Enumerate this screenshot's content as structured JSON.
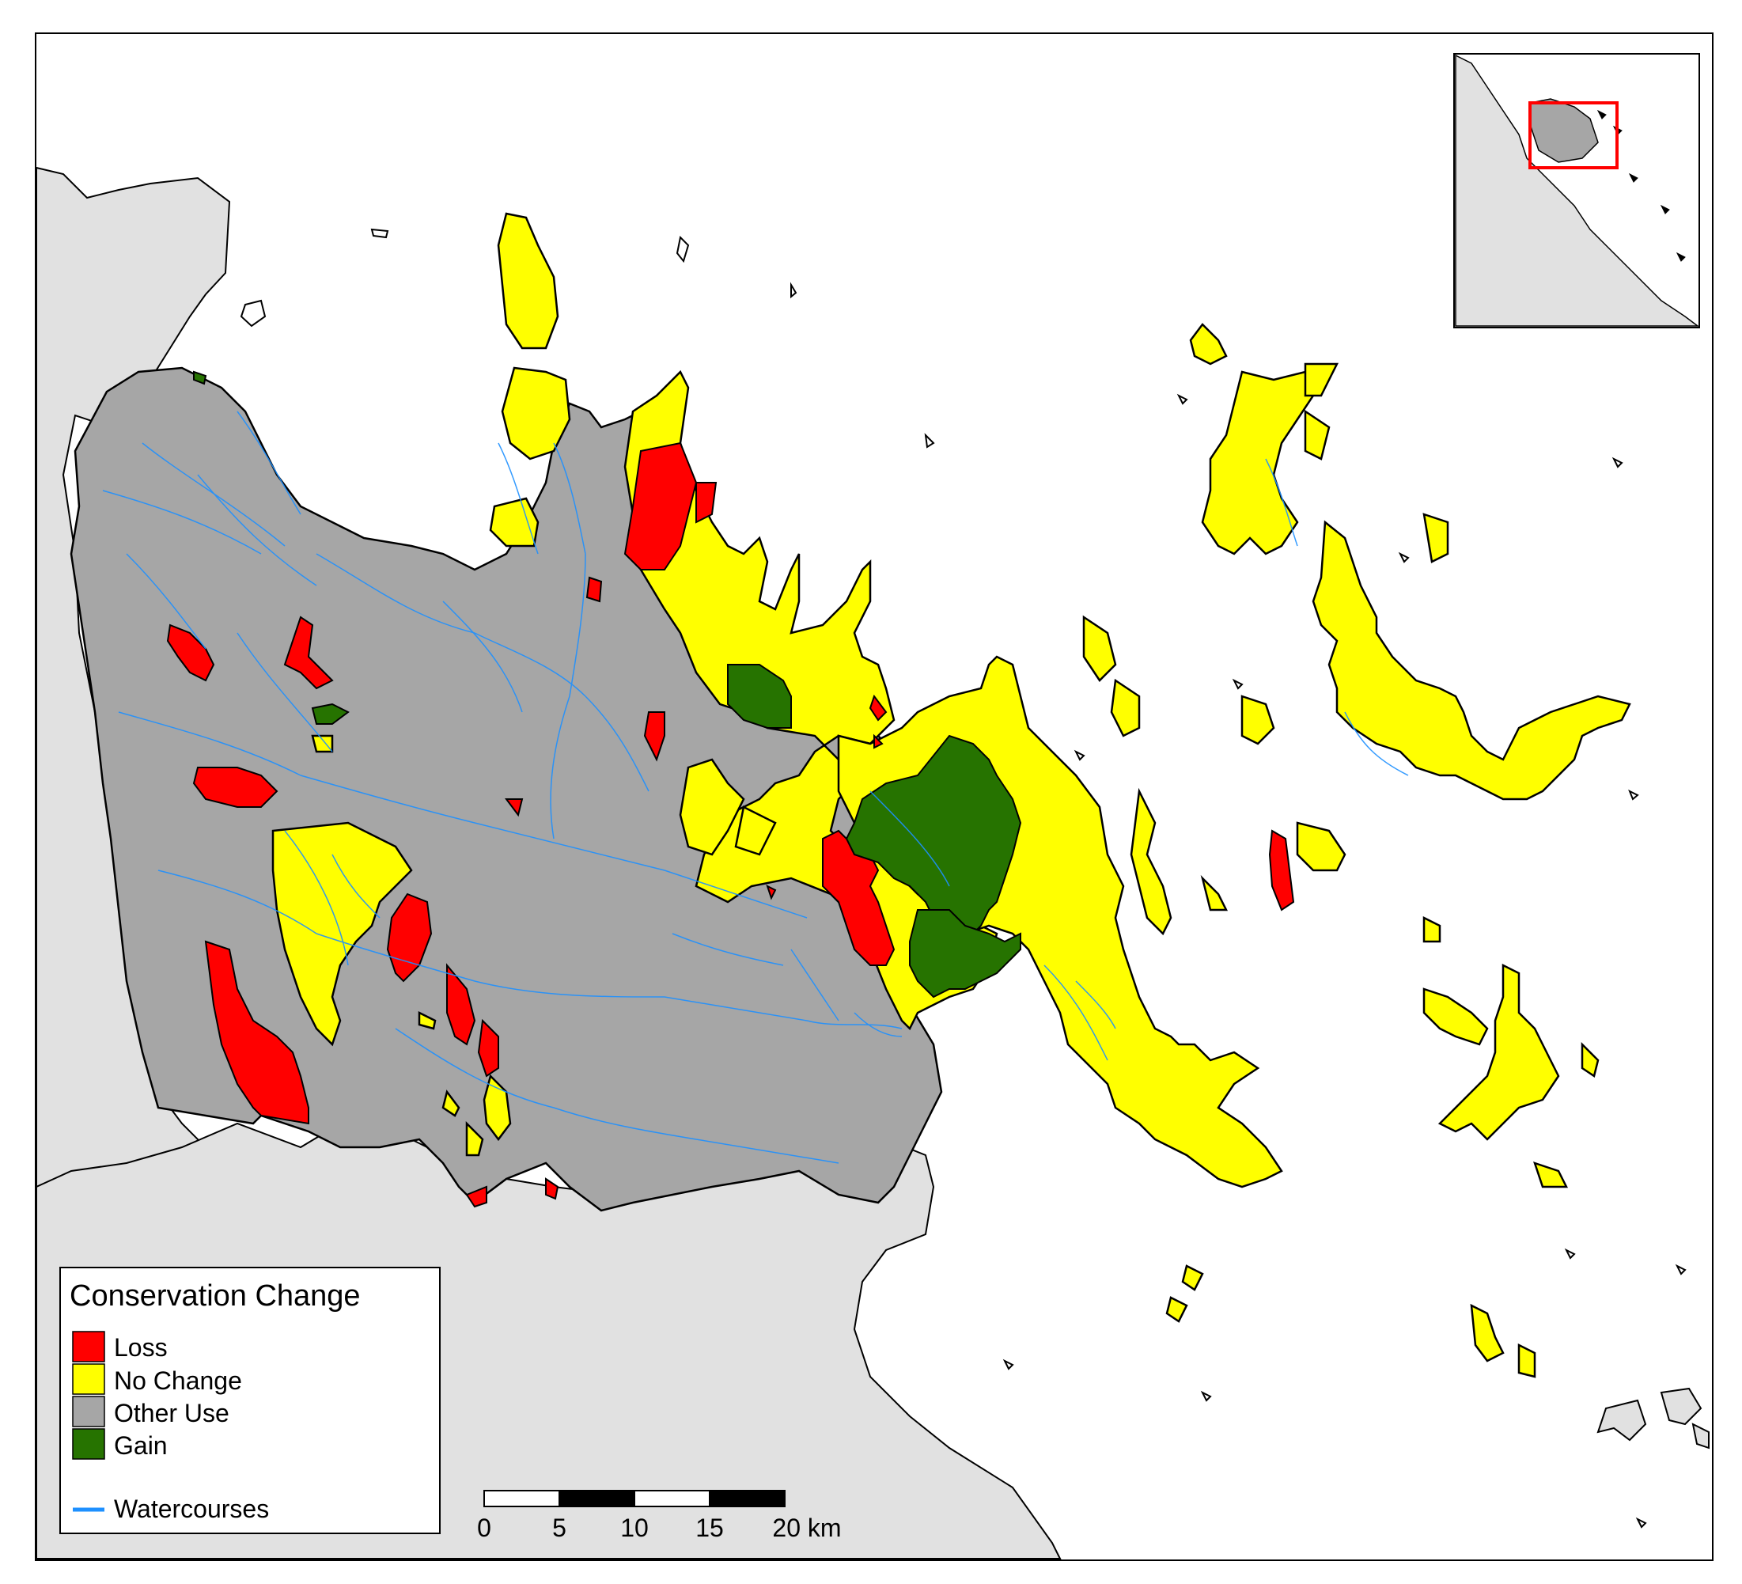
{
  "legend": {
    "title": "Conservation Change",
    "items": [
      {
        "label": "Loss",
        "color": "#ff0000"
      },
      {
        "label": "No Change",
        "color": "#ffff00"
      },
      {
        "label": "Other Use",
        "color": "#a6a6a6"
      },
      {
        "label": "Gain",
        "color": "#267300"
      }
    ],
    "line_item": {
      "label": "Watercourses",
      "color": "#1e90ff"
    }
  },
  "scale_bar": {
    "ticks": [
      "0",
      "5",
      "10",
      "15",
      "20 km"
    ]
  },
  "colors": {
    "water": "#ffffff",
    "surrounding_land": "#e1e1e1",
    "inset_frame": "#ff0000"
  },
  "icons": {
    "inset": "locator-map-icon",
    "scale": "scale-bar-icon"
  }
}
